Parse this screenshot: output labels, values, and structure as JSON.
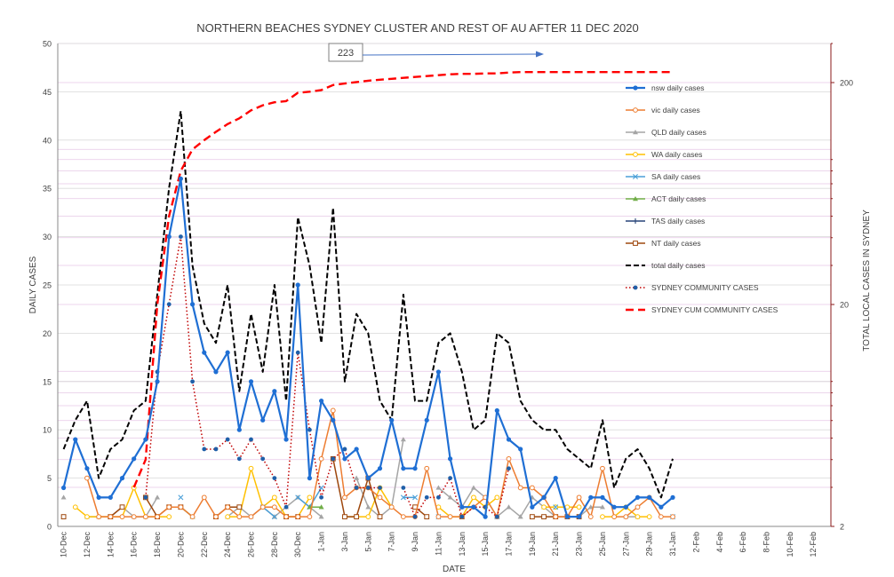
{
  "chart_data": {
    "type": "line",
    "title": "NORTHERN BEACHES SYDNEY CLUSTER AND REST OF AU AFTER 11 DEC 2020",
    "xlabel": "DATE",
    "ylabel": "DAILY CASES",
    "y2label": "TOTAL LOCAL CASES IN SYDNEY",
    "ylim": [
      0,
      50
    ],
    "y_ticks": [
      "0",
      "5",
      "10",
      "15",
      "20",
      "25",
      "30",
      "35",
      "40",
      "45",
      "50"
    ],
    "y2_scale": "log",
    "y2lim": [
      2,
      300
    ],
    "y2_ticks": [
      "2",
      "20",
      "200"
    ],
    "grid": true,
    "legend_position": "right",
    "x_tick_labels": [
      "10-Dec",
      "12-Dec",
      "14-Dec",
      "16-Dec",
      "18-Dec",
      "20-Dec",
      "22-Dec",
      "24-Dec",
      "26-Dec",
      "28-Dec",
      "30-Dec",
      "1-Jan",
      "3-Jan",
      "5-Jan",
      "7-Jan",
      "9-Jan",
      "11-Jan",
      "13-Jan",
      "15-Jan",
      "17-Jan",
      "19-Jan",
      "21-Jan",
      "23-Jan",
      "25-Jan",
      "27-Jan",
      "29-Jan",
      "31-Jan",
      "2-Feb",
      "4-Feb",
      "6-Feb",
      "8-Feb",
      "10-Feb",
      "12-Feb"
    ],
    "x": [
      "10-Dec",
      "11-Dec",
      "12-Dec",
      "13-Dec",
      "14-Dec",
      "15-Dec",
      "16-Dec",
      "17-Dec",
      "18-Dec",
      "19-Dec",
      "20-Dec",
      "21-Dec",
      "22-Dec",
      "23-Dec",
      "24-Dec",
      "25-Dec",
      "26-Dec",
      "27-Dec",
      "28-Dec",
      "29-Dec",
      "30-Dec",
      "31-Dec",
      "1-Jan",
      "2-Jan",
      "3-Jan",
      "4-Jan",
      "5-Jan",
      "6-Jan",
      "7-Jan",
      "8-Jan",
      "9-Jan",
      "10-Jan",
      "11-Jan",
      "12-Jan",
      "13-Jan",
      "14-Jan",
      "15-Jan",
      "16-Jan",
      "17-Jan",
      "18-Jan",
      "19-Jan",
      "20-Jan",
      "21-Jan",
      "22-Jan",
      "23-Jan",
      "24-Jan",
      "25-Jan",
      "26-Jan",
      "27-Jan",
      "28-Jan",
      "29-Jan",
      "30-Jan",
      "31-Jan"
    ],
    "annotation": "223",
    "series": [
      {
        "name": "nsw daily cases",
        "color": "#1f6fd4",
        "style": "solid-thick",
        "marker": "dot",
        "axis": "left",
        "values": [
          4,
          9,
          6,
          3,
          3,
          5,
          7,
          9,
          15,
          30,
          36,
          23,
          18,
          16,
          18,
          10,
          15,
          11,
          14,
          9,
          25,
          5,
          13,
          11,
          7,
          8,
          5,
          6,
          11,
          6,
          6,
          11,
          16,
          7,
          2,
          2,
          1,
          12,
          9,
          8,
          2,
          3,
          5,
          1,
          1,
          3,
          3,
          2,
          2,
          3,
          3,
          2,
          3
        ]
      },
      {
        "name": "vic daily cases",
        "color": "#ed7d31",
        "style": "solid",
        "marker": "circle",
        "axis": "left",
        "values": [
          null,
          null,
          5,
          1,
          1,
          1,
          1,
          1,
          1,
          2,
          2,
          1,
          3,
          1,
          2,
          1,
          1,
          2,
          2,
          1,
          1,
          1,
          7,
          12,
          3,
          4,
          4,
          3,
          2,
          1,
          1,
          6,
          1,
          1,
          1,
          2,
          3,
          1,
          7,
          4,
          4,
          3,
          1,
          1,
          3,
          1,
          6,
          1,
          1,
          2,
          3,
          1,
          1
        ]
      },
      {
        "name": "QLD daily cases",
        "color": "#a5a5a5",
        "style": "solid",
        "marker": "triangle",
        "axis": "left",
        "values": [
          3,
          null,
          1,
          1,
          1,
          2,
          1,
          1,
          3,
          null,
          2,
          1,
          null,
          null,
          1,
          2,
          1,
          2,
          1,
          2,
          3,
          2,
          1,
          null,
          null,
          5,
          2,
          1,
          2,
          9,
          null,
          null,
          4,
          3,
          2,
          4,
          3,
          1,
          2,
          1,
          3,
          2,
          1,
          null,
          1,
          2,
          2,
          null,
          1,
          1,
          null,
          null,
          null
        ]
      },
      {
        "name": "WA  daily cases",
        "color": "#ffc000",
        "style": "solid",
        "marker": "circle",
        "axis": "left",
        "values": [
          null,
          2,
          1,
          1,
          1,
          1,
          4,
          1,
          1,
          1,
          null,
          null,
          null,
          null,
          1,
          1,
          6,
          2,
          3,
          1,
          1,
          3,
          null,
          null,
          1,
          1,
          1,
          4,
          2,
          null,
          null,
          null,
          2,
          1,
          1,
          3,
          2,
          3,
          null,
          null,
          null,
          2,
          2,
          2,
          2,
          null,
          1,
          1,
          2,
          1,
          1,
          null,
          null
        ]
      },
      {
        "name": "SA  daily cases",
        "color": "#4a9fd8",
        "style": "solid",
        "marker": "x",
        "axis": "left",
        "values": [
          null,
          null,
          null,
          null,
          null,
          null,
          null,
          null,
          null,
          null,
          3,
          null,
          null,
          null,
          null,
          null,
          null,
          2,
          1,
          null,
          3,
          2,
          4,
          null,
          null,
          null,
          null,
          null,
          null,
          3,
          3,
          null,
          1,
          null,
          null,
          null,
          null,
          1,
          null,
          null,
          null,
          null,
          2,
          null,
          null,
          null,
          null,
          null,
          null,
          null,
          null,
          null,
          1
        ]
      },
      {
        "name": "ACT daily cases",
        "color": "#70ad47",
        "style": "solid",
        "marker": "triangle",
        "axis": "left",
        "values": [
          null,
          null,
          null,
          null,
          null,
          null,
          null,
          null,
          null,
          null,
          2,
          1,
          null,
          null,
          null,
          null,
          null,
          null,
          null,
          null,
          null,
          2,
          2,
          null,
          null,
          null,
          null,
          null,
          null,
          null,
          null,
          null,
          null,
          null,
          null,
          null,
          null,
          null,
          null,
          null,
          null,
          null,
          null,
          null,
          null,
          null,
          null,
          null,
          null,
          null,
          null,
          null,
          null
        ]
      },
      {
        "name": "TAS daily cases",
        "color": "#264478",
        "style": "solid",
        "marker": "plus",
        "axis": "left",
        "values": [
          null,
          null,
          null,
          null,
          null,
          null,
          null,
          null,
          null,
          null,
          null,
          null,
          null,
          null,
          null,
          null,
          null,
          null,
          null,
          null,
          null,
          null,
          null,
          null,
          null,
          null,
          null,
          null,
          null,
          null,
          null,
          null,
          null,
          null,
          null,
          null,
          null,
          null,
          null,
          null,
          null,
          null,
          null,
          null,
          null,
          null,
          null,
          null,
          null,
          null,
          null,
          null,
          null
        ]
      },
      {
        "name": "NT daily cases",
        "color": "#9e480e",
        "style": "solid",
        "marker": "square",
        "axis": "left",
        "values": [
          1,
          null,
          null,
          null,
          1,
          2,
          null,
          3,
          1,
          2,
          2,
          null,
          null,
          1,
          2,
          2,
          null,
          null,
          null,
          1,
          1,
          null,
          null,
          7,
          1,
          1,
          5,
          1,
          null,
          null,
          2,
          1,
          null,
          null,
          1,
          null,
          null,
          null,
          null,
          null,
          1,
          1,
          1,
          1,
          1,
          null,
          null,
          null,
          null,
          null,
          null,
          null,
          null
        ]
      },
      {
        "name": "total daily cases",
        "color": "#000000",
        "style": "dash",
        "marker": "none",
        "axis": "left",
        "values": [
          8,
          11,
          13,
          5,
          8,
          9,
          12,
          13,
          24,
          35,
          43,
          27,
          21,
          19,
          25,
          14,
          22,
          16,
          25,
          13,
          32,
          27,
          19,
          33,
          15,
          22,
          20,
          13,
          11,
          24,
          13,
          13,
          19,
          20,
          16,
          10,
          11,
          20,
          19,
          13,
          11,
          10,
          10,
          8,
          7,
          6,
          11,
          4,
          7,
          8,
          6,
          3,
          7
        ]
      },
      {
        "name": "SYDNEY COMMUNITY CASES",
        "color": "#c00000",
        "style": "dot",
        "marker": "dot-blue",
        "axis": "left",
        "values": [
          null,
          null,
          null,
          null,
          null,
          null,
          null,
          3,
          16,
          23,
          30,
          15,
          8,
          8,
          9,
          7,
          9,
          7,
          5,
          2,
          18,
          10,
          3,
          7,
          8,
          4,
          4,
          4,
          null,
          4,
          1,
          3,
          3,
          5,
          1,
          2,
          2,
          1,
          6,
          null,
          null,
          null,
          null,
          null,
          null,
          null,
          null,
          null,
          null,
          null,
          null,
          null,
          null
        ]
      },
      {
        "name": "SYDNEY CUM COMMUNITY CASES",
        "color": "#ff0000",
        "style": "dash-thick",
        "marker": "none",
        "axis": "right",
        "values": [
          null,
          null,
          null,
          null,
          null,
          null,
          3,
          4,
          20,
          50,
          80,
          100,
          110,
          120,
          130,
          138,
          150,
          158,
          163,
          165,
          180,
          182,
          185,
          195,
          198,
          201,
          204,
          206,
          208,
          210,
          212,
          214,
          216,
          218,
          219,
          219,
          220,
          220,
          222,
          223,
          223,
          223,
          223,
          223,
          223,
          223,
          223,
          223,
          223,
          223,
          223,
          223,
          223
        ]
      }
    ]
  }
}
